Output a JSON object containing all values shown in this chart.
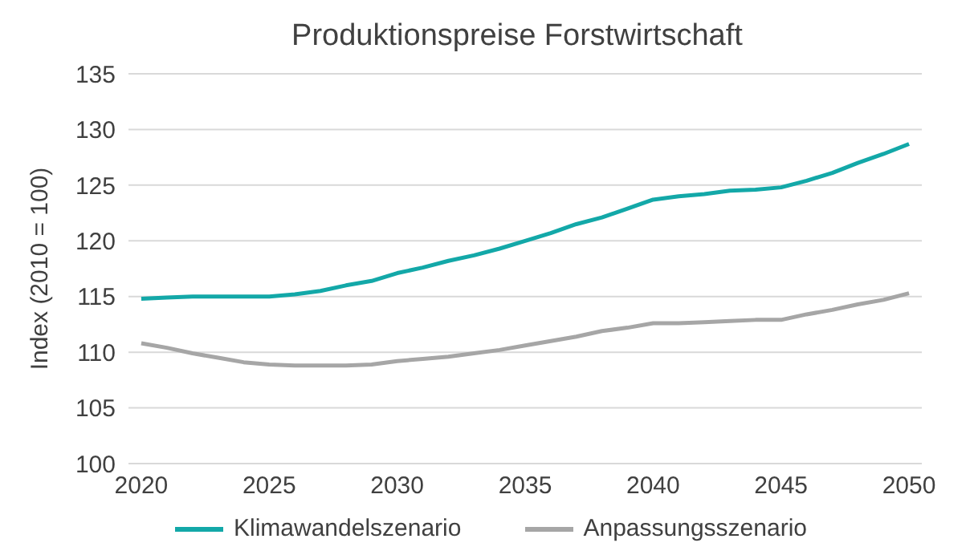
{
  "chart_data": {
    "type": "line",
    "title": "Produktionspreise Forstwirtschaft",
    "ylabel": "Index (2010 = 100)",
    "x": [
      2020,
      2021,
      2022,
      2023,
      2024,
      2025,
      2026,
      2027,
      2028,
      2029,
      2030,
      2031,
      2032,
      2033,
      2034,
      2035,
      2036,
      2037,
      2038,
      2039,
      2040,
      2041,
      2042,
      2043,
      2044,
      2045,
      2046,
      2047,
      2048,
      2049,
      2050
    ],
    "series": [
      {
        "name": "Klimawandelszenario",
        "color": "#13a8a8",
        "values": [
          114.8,
          114.9,
          115.0,
          115.0,
          115.0,
          115.0,
          115.2,
          115.5,
          116.0,
          116.4,
          117.1,
          117.6,
          118.2,
          118.7,
          119.3,
          120.0,
          120.7,
          121.5,
          122.1,
          122.9,
          123.7,
          124.0,
          124.2,
          124.5,
          124.6,
          124.8,
          125.4,
          126.1,
          127.0,
          127.8,
          128.7
        ]
      },
      {
        "name": "Anpassungsszenario",
        "color": "#a6a6a6",
        "values": [
          110.8,
          110.4,
          109.9,
          109.5,
          109.1,
          108.9,
          108.8,
          108.8,
          108.8,
          108.9,
          109.2,
          109.4,
          109.6,
          109.9,
          110.2,
          110.6,
          111.0,
          111.4,
          111.9,
          112.2,
          112.6,
          112.6,
          112.7,
          112.8,
          112.9,
          112.9,
          113.4,
          113.8,
          114.3,
          114.7,
          115.3
        ]
      }
    ],
    "xlim": [
      2019.5,
      2050.5
    ],
    "xticks": [
      2020,
      2025,
      2030,
      2035,
      2040,
      2045,
      2050
    ],
    "ylim": [
      100,
      135
    ],
    "yticks": [
      100,
      105,
      110,
      115,
      120,
      125,
      130,
      135
    ],
    "grid": "y",
    "legend": "bottom",
    "marker": "none",
    "line_style": "solid"
  }
}
